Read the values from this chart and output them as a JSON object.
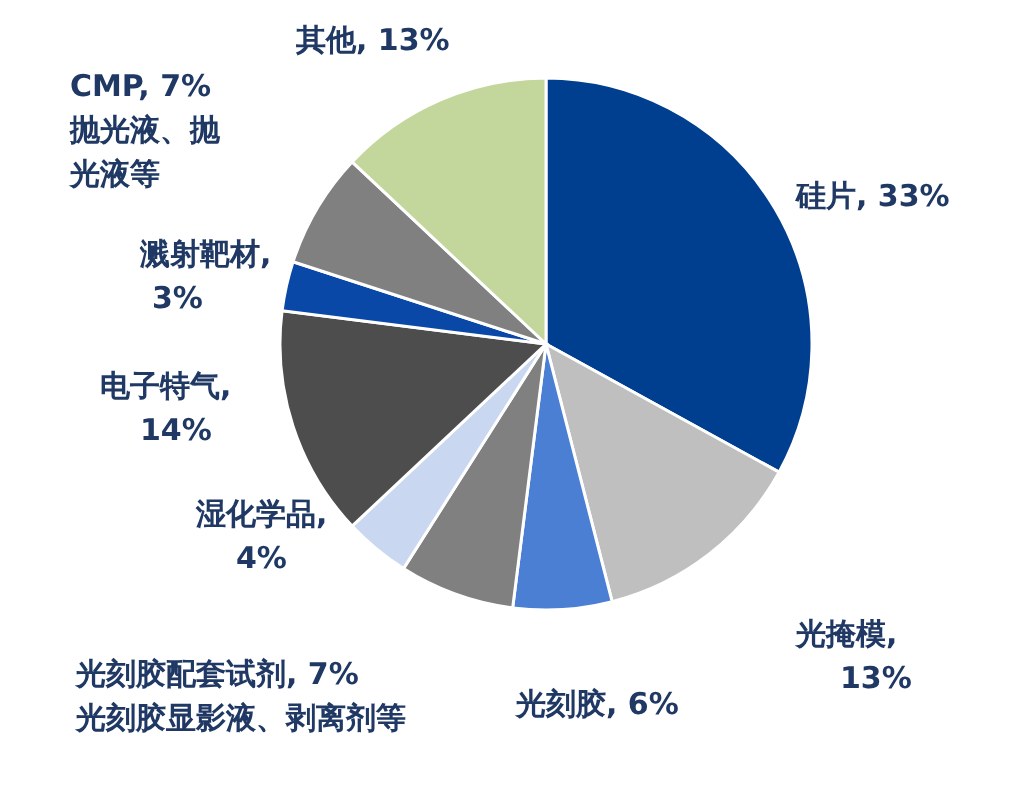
{
  "chart_data": {
    "type": "pie",
    "categories": [
      "硅片, 33%",
      "光掩模,\n13%",
      "光刻胶, 6%",
      "光刻胶配套试剂, 7%\n光刻胶显影液、剥离剂等",
      "湿化学品,\n4%",
      "电子特气,\n14%",
      "溅射靶材,\n3%",
      "CMP, 7%\n抛光液、抛光液等",
      "其他, 13%"
    ],
    "values": [
      33,
      13,
      6,
      7,
      4,
      14,
      3,
      7,
      13
    ],
    "colors": [
      "#003f8f",
      "#bfbfbf",
      "#4a7fd4",
      "#808080",
      "#c9d8f0",
      "#4d4d4d",
      "#0a48a8",
      "#808080",
      "#c3d69b"
    ]
  }
}
